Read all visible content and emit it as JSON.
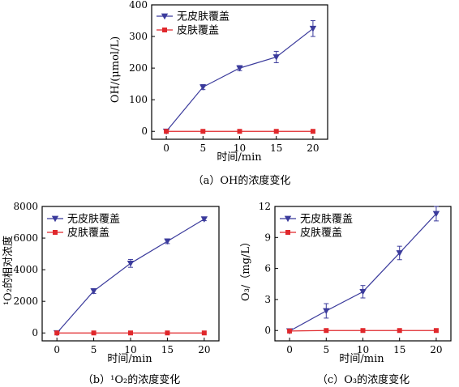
{
  "colors": {
    "series_a": "#3b3b9c",
    "series_b": "#e0282c",
    "axis": "#000000"
  },
  "chart_data": [
    {
      "type": "line",
      "caption": "（a）OH的浓度变化",
      "xlabel": "时间/min",
      "ylabel": "OH/(μmol/L)",
      "x": [
        0,
        5,
        10,
        15,
        20
      ],
      "xlim": [
        -2,
        22
      ],
      "ylim": [
        -25,
        400
      ],
      "xticks": [
        "0",
        "5",
        "10",
        "15",
        "20"
      ],
      "yticks": [
        "0",
        "100",
        "200",
        "300",
        "400"
      ],
      "legend": "top-left",
      "series": [
        {
          "name": "无皮肤覆盖",
          "marker": "triangle-down",
          "values": [
            0,
            140,
            200,
            235,
            325
          ],
          "errors": [
            0,
            8,
            8,
            18,
            25
          ]
        },
        {
          "name": "皮肤覆盖",
          "marker": "square",
          "values": [
            0,
            0,
            0,
            0,
            0
          ],
          "errors": [
            0,
            0,
            0,
            0,
            0
          ]
        }
      ]
    },
    {
      "type": "line",
      "caption": "（b）¹O₂的浓度变化",
      "xlabel": "时间/min",
      "ylabel": "¹O₂的相对浓度",
      "x": [
        0,
        5,
        10,
        15,
        20
      ],
      "xlim": [
        -2,
        22
      ],
      "ylim": [
        -500,
        8000
      ],
      "xticks": [
        "0",
        "5",
        "10",
        "15",
        "20"
      ],
      "yticks": [
        "0",
        "2000",
        "4000",
        "6000",
        "8000"
      ],
      "legend": "top-left",
      "series": [
        {
          "name": "无皮肤覆盖",
          "marker": "triangle-down",
          "values": [
            0,
            2650,
            4400,
            5800,
            7200
          ],
          "errors": [
            0,
            150,
            250,
            150,
            100
          ]
        },
        {
          "name": "皮肤覆盖",
          "marker": "square",
          "values": [
            0,
            0,
            0,
            0,
            0
          ],
          "errors": [
            0,
            0,
            0,
            0,
            0
          ]
        }
      ]
    },
    {
      "type": "line",
      "caption": "（c）O₃的浓度变化",
      "xlabel": "时间/min",
      "ylabel": "O₃/（mg/L）",
      "x": [
        0,
        5,
        10,
        15,
        20
      ],
      "xlim": [
        -2,
        22
      ],
      "ylim": [
        -1,
        12
      ],
      "xticks": [
        "0",
        "5",
        "10",
        "15",
        "20"
      ],
      "yticks": [
        "0",
        "3",
        "6",
        "9",
        "12"
      ],
      "legend": "top-left",
      "series": [
        {
          "name": "无皮肤覆盖",
          "marker": "triangle-down",
          "values": [
            -0.05,
            1.9,
            3.75,
            7.5,
            11.3
          ],
          "errors": [
            0,
            0.7,
            0.6,
            0.65,
            0.7
          ]
        },
        {
          "name": "皮肤覆盖",
          "marker": "square",
          "values": [
            -0.05,
            0,
            0,
            0,
            0
          ],
          "errors": [
            0,
            0,
            0,
            0,
            0
          ]
        }
      ]
    }
  ]
}
